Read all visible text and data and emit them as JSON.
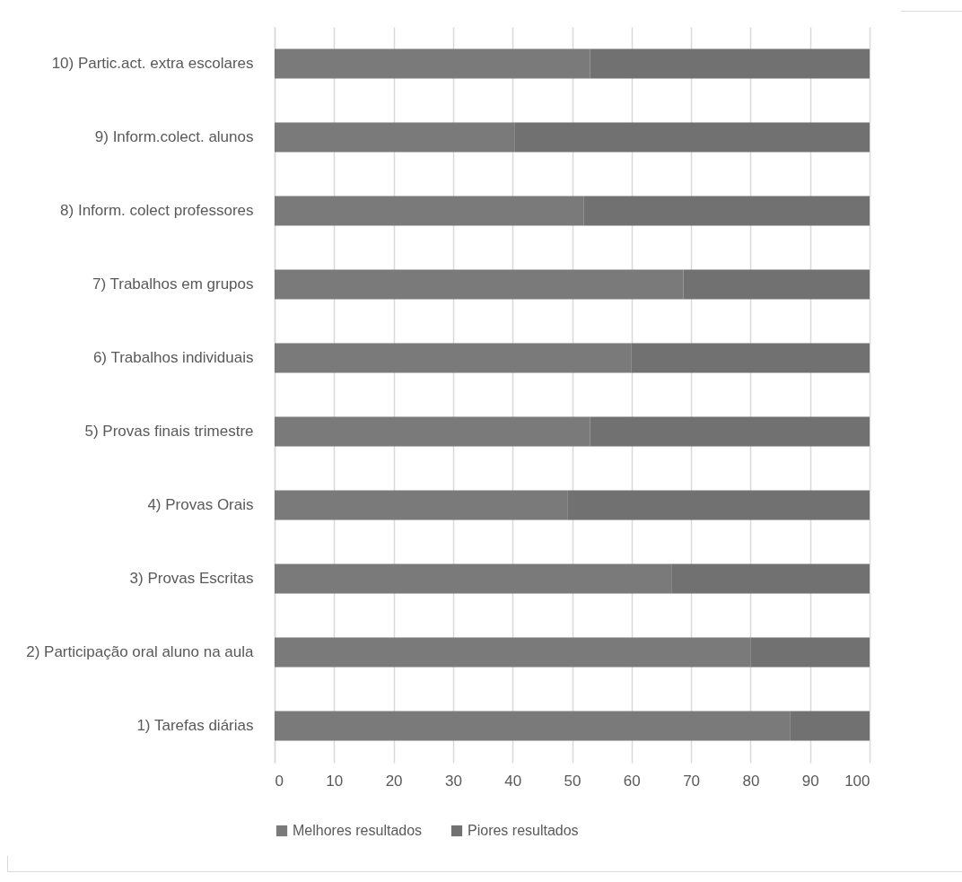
{
  "chart_data": {
    "type": "bar",
    "orientation": "horizontal",
    "stacked": true,
    "categories": [
      "10) Partic.act. extra escolares",
      "9) Inform.colect. alunos",
      "8) Inform. colect professores",
      "7) Trabalhos em grupos",
      "6) Trabalhos individuais",
      "5) Provas finais trimestre",
      "4) Provas Orais",
      "3) Provas Escritas",
      "2) Participação oral aluno na aula",
      "1) Tarefas diárias"
    ],
    "series": [
      {
        "name": "Melhores resultados",
        "color": "#7a7a7a",
        "values": [
          53,
          40.3,
          52,
          68.7,
          60,
          53,
          49.3,
          66.8,
          80,
          86.7
        ]
      },
      {
        "name": "Piores resultados",
        "color": "#717171",
        "values": [
          47,
          59.7,
          48,
          31.3,
          40,
          47,
          50.7,
          33.2,
          20,
          13.3
        ]
      }
    ],
    "xlim": [
      0,
      100
    ],
    "xticks": [
      0,
      10,
      20,
      30,
      40,
      50,
      60,
      70,
      80,
      90,
      100
    ],
    "grid": "x",
    "legend": "bottom"
  }
}
